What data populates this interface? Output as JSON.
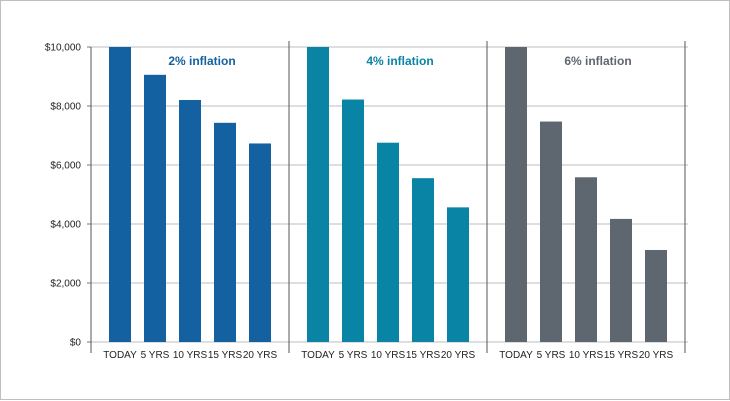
{
  "chart_data": {
    "type": "bar",
    "ylim": [
      0,
      10000
    ],
    "yticks": [
      0,
      2000,
      4000,
      6000,
      8000,
      10000
    ],
    "ytick_labels": [
      "$0",
      "$2,000",
      "$4,000",
      "$6,000",
      "$8,000",
      "$10,000"
    ],
    "grid": true,
    "categories": [
      "TODAY",
      "5 YRS",
      "10 YRS",
      "15 YRS",
      "20 YRS"
    ],
    "panels": [
      {
        "title": "2% inflation",
        "color": "#1361a0",
        "title_color": "#1361a0",
        "values": [
          10000,
          9057,
          8203,
          7430,
          6730
        ]
      },
      {
        "title": "4% inflation",
        "color": "#0a84a4",
        "title_color": "#0a84a4",
        "values": [
          10000,
          8219,
          6756,
          5553,
          4564
        ]
      },
      {
        "title": "6% inflation",
        "color": "#5e6670",
        "title_color": "#5e6670",
        "values": [
          10000,
          7473,
          5584,
          4173,
          3118
        ]
      }
    ]
  }
}
